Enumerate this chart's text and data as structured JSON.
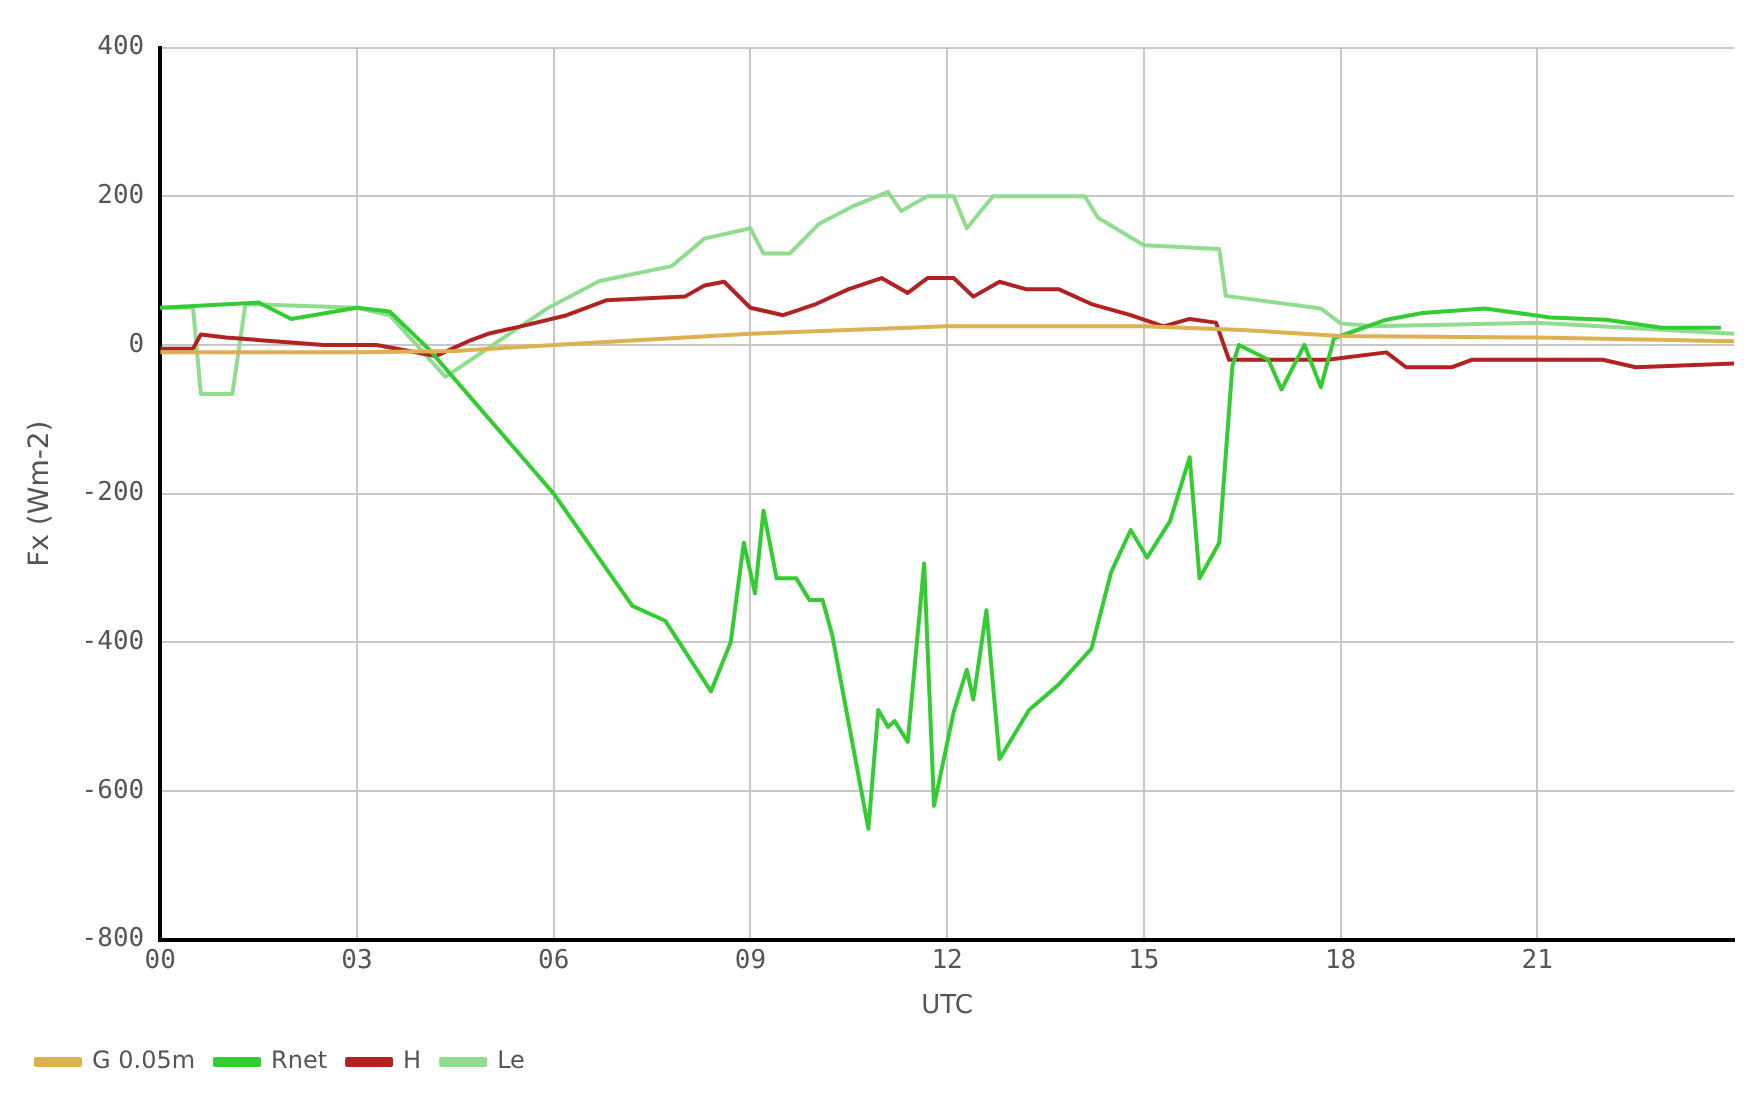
{
  "chart_data": {
    "type": "line",
    "xlabel": "UTC",
    "ylabel": "Fx (Wm-2)",
    "xlim": [
      0,
      24
    ],
    "xticks": [
      {
        "value": 0,
        "label": "00"
      },
      {
        "value": 3,
        "label": "03"
      },
      {
        "value": 6,
        "label": "06"
      },
      {
        "value": 9,
        "label": "09"
      },
      {
        "value": 12,
        "label": "12"
      },
      {
        "value": 15,
        "label": "15"
      },
      {
        "value": 18,
        "label": "18"
      },
      {
        "value": 21,
        "label": "21"
      }
    ],
    "ylim": [
      -800,
      400
    ],
    "yticks": [
      -800,
      -600,
      -400,
      -200,
      0,
      200,
      400
    ],
    "grid": true,
    "legend": "bottom left",
    "marker": "none",
    "line_style": "solid",
    "series": [
      {
        "name": "G 0.05m",
        "color": "#ddb050",
        "x": [
          0,
          3,
          4.5,
          6,
          9,
          12,
          15,
          16.5,
          18,
          21,
          24
        ],
        "values": [
          -10,
          -10,
          -8,
          0,
          15,
          25,
          25,
          20,
          12,
          10,
          5
        ]
      },
      {
        "name": "Rnet",
        "color": "#33cc33",
        "x": [
          0,
          1.5,
          2,
          3,
          3.5,
          4.1,
          6,
          7.2,
          7.7,
          8.4,
          8.7,
          8.9,
          9.07,
          9.2,
          9.4,
          9.7,
          9.9,
          10.1,
          10.25,
          10.8,
          10.95,
          11.1,
          11.2,
          11.4,
          11.65,
          11.8,
          12.1,
          12.3,
          12.4,
          12.6,
          12.8,
          13.25,
          13.7,
          14.2,
          14.5,
          14.8,
          15.05,
          15.4,
          15.7,
          15.85,
          16.15,
          16.35,
          16.45,
          16.9,
          17.1,
          17.45,
          17.7,
          17.9,
          18.7,
          19.25,
          20.2,
          21.2,
          22.05,
          22.9,
          23.8
        ],
        "values": [
          50,
          57,
          35,
          50,
          45,
          -6,
          -200,
          -351,
          -371,
          -466,
          -400,
          -266,
          -334,
          -223,
          -314,
          -314,
          -343,
          -343,
          -391,
          -651,
          -491,
          -514,
          -506,
          -534,
          -294,
          -620,
          -494,
          -437,
          -477,
          -357,
          -557,
          -491,
          -457,
          -409,
          -306,
          -249,
          -286,
          -237,
          -151,
          -314,
          -266,
          -29,
          0,
          -20,
          -60,
          0,
          -57,
          9,
          34,
          43,
          49,
          37,
          34,
          23,
          23
        ]
      },
      {
        "name": "H",
        "color": "#b22222",
        "x": [
          0,
          0.5,
          0.62,
          1,
          2.5,
          3.3,
          4.2,
          4.7,
          5,
          5.5,
          6.2,
          6.8,
          8,
          8.3,
          8.6,
          9,
          9.5,
          10,
          10.5,
          11,
          11.4,
          11.7,
          12.1,
          12.4,
          12.8,
          13.2,
          13.7,
          14.2,
          14.8,
          15.3,
          15.7,
          16.1,
          16.3,
          17.8,
          18.7,
          19,
          19.7,
          20,
          22,
          22.5,
          24
        ],
        "values": [
          -5,
          -5,
          14,
          10,
          0,
          0,
          -15,
          5,
          15,
          25,
          40,
          60,
          65,
          80,
          85,
          50,
          40,
          55,
          75,
          90,
          70,
          90,
          90,
          65,
          85,
          75,
          75,
          55,
          40,
          25,
          35,
          30,
          -20,
          -20,
          -10,
          -30,
          -30,
          -20,
          -20,
          -30,
          -25
        ]
      },
      {
        "name": "Le",
        "color": "#90dd90",
        "x": [
          0,
          0.5,
          0.62,
          1.1,
          1.3,
          3,
          3.5,
          4.35,
          5.9,
          6.7,
          7.8,
          8.3,
          9,
          9.2,
          9.6,
          10.05,
          10.55,
          11.1,
          11.3,
          11.7,
          12.1,
          12.3,
          12.7,
          14.1,
          14.3,
          15,
          16.15,
          16.25,
          17.7,
          18,
          18.5,
          21,
          24
        ],
        "values": [
          50,
          50,
          -66,
          -66,
          55,
          50,
          40,
          -43,
          49,
          86,
          106,
          143,
          157,
          123,
          123,
          163,
          186,
          206,
          180,
          200,
          200,
          157,
          200,
          200,
          171,
          134,
          129,
          66,
          49,
          29,
          25,
          30,
          15
        ]
      }
    ]
  }
}
